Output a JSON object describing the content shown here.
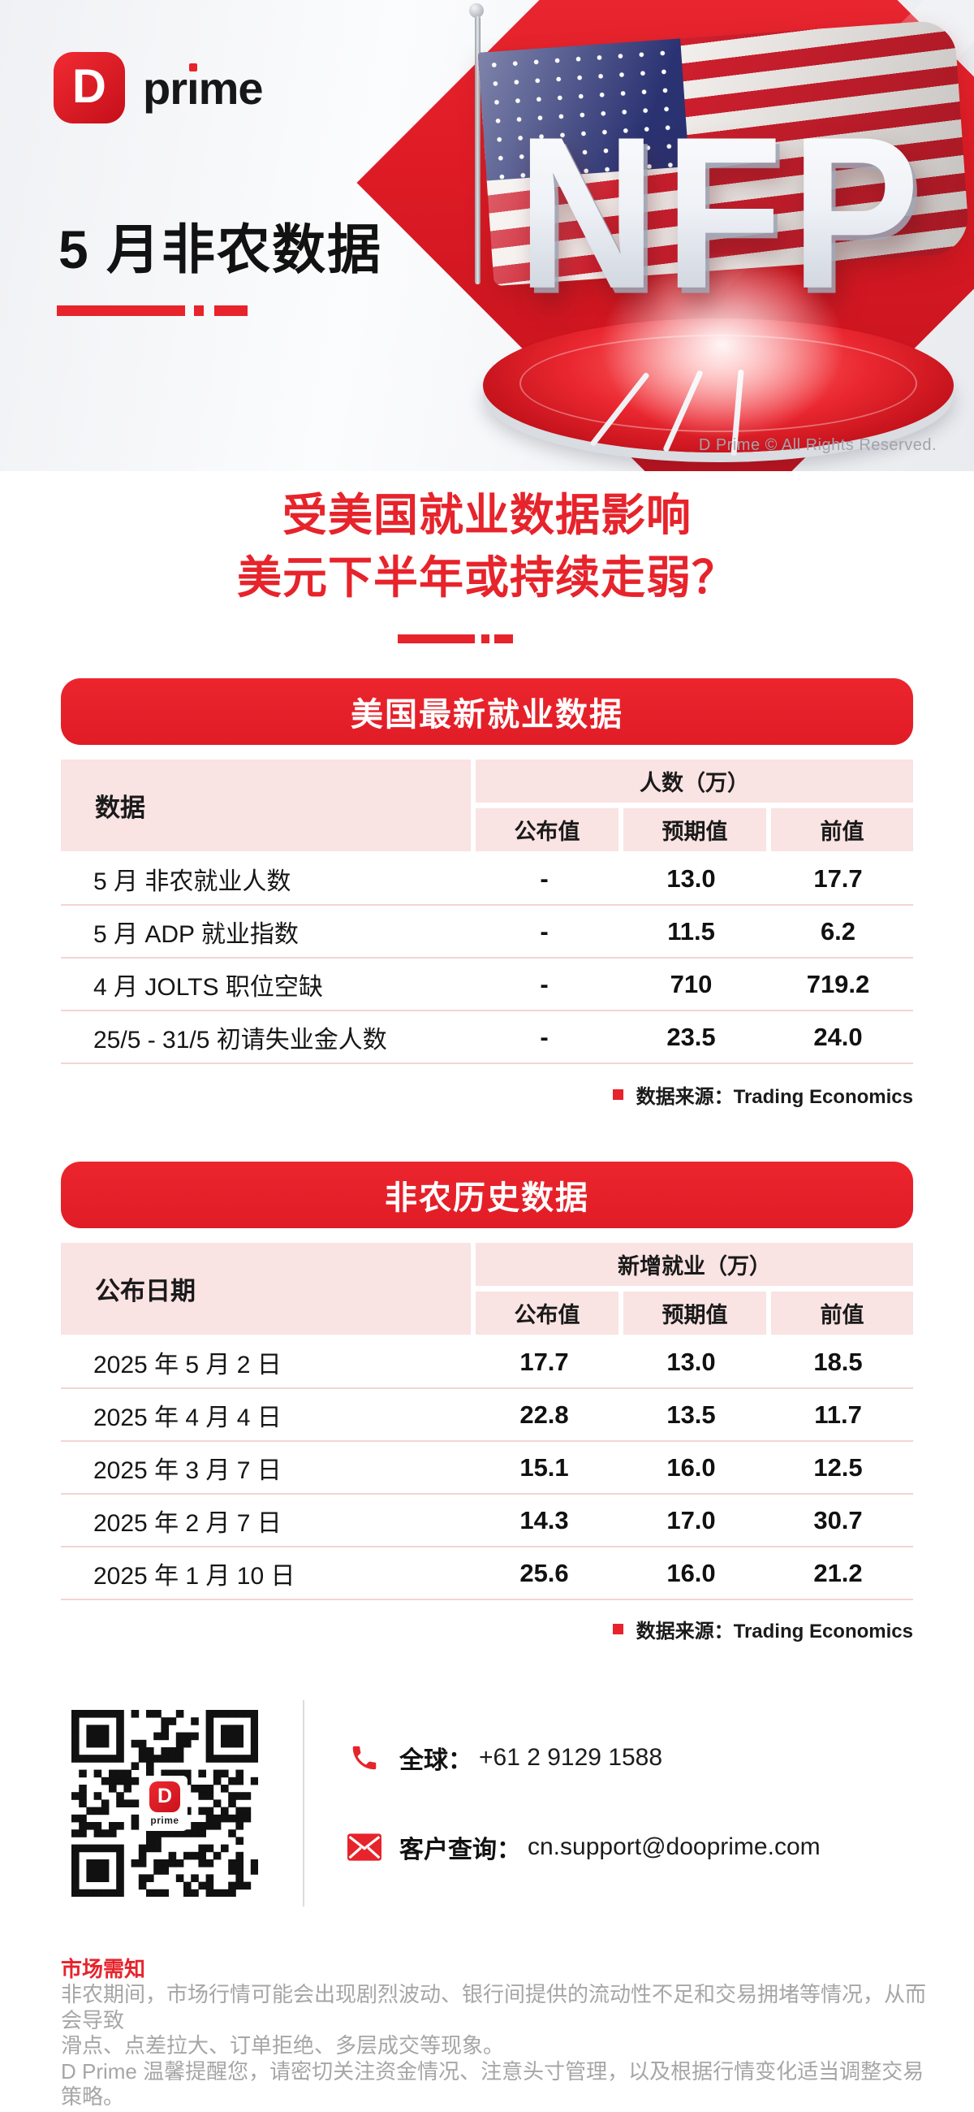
{
  "brand": {
    "mark_letter": "D",
    "wordmark": "prime"
  },
  "banner": {
    "title": "5 月非农数据",
    "nfp_text": "NFP",
    "copyright": "D Prime © All Rights Reserved."
  },
  "headline": {
    "line1": "受美国就业数据影响",
    "line2": "美元下半年或持续走弱？"
  },
  "tables": [
    {
      "section_title": "美国最新就业数据",
      "row_header": "数据",
      "group_header": "人数（万）",
      "columns": [
        "公布值",
        "预期值",
        "前值"
      ],
      "rows": [
        {
          "label": "5 月 非农就业人数",
          "values": [
            "-",
            "13.0",
            "17.7"
          ]
        },
        {
          "label": "5 月 ADP 就业指数",
          "values": [
            "-",
            "11.5",
            "6.2"
          ]
        },
        {
          "label": "4 月 JOLTS 职位空缺",
          "values": [
            "-",
            "710",
            "719.2"
          ]
        },
        {
          "label": "25/5 - 31/5 初请失业金人数",
          "values": [
            "-",
            "23.5",
            "24.0"
          ]
        }
      ],
      "source": "数据来源：Trading Economics"
    },
    {
      "section_title": "非农历史数据",
      "row_header": "公布日期",
      "group_header": "新增就业（万）",
      "columns": [
        "公布值",
        "预期值",
        "前值"
      ],
      "rows": [
        {
          "label": "2025 年 5 月 2 日",
          "values": [
            "17.7",
            "13.0",
            "18.5"
          ]
        },
        {
          "label": "2025 年 4 月 4 日",
          "values": [
            "22.8",
            "13.5",
            "11.7"
          ]
        },
        {
          "label": "2025 年 3 月 7 日",
          "values": [
            "15.1",
            "16.0",
            "12.5"
          ]
        },
        {
          "label": "2025 年 2 月 7 日",
          "values": [
            "14.3",
            "17.0",
            "30.7"
          ]
        },
        {
          "label": "2025 年 1 月 10 日",
          "values": [
            "25.6",
            "16.0",
            "21.2"
          ]
        }
      ],
      "source": "数据来源：Trading Economics"
    }
  ],
  "contact": {
    "phone_icon": "phone-icon",
    "phone_label": "全球：",
    "phone_number": "+61 2 9129 1588",
    "email_icon": "envelope-icon",
    "email_label": "客户查询：",
    "email": "cn.support@dooprime.com",
    "qr_icon": "qr-code"
  },
  "footer": {
    "notice_title": "市场需知",
    "line1": "非农期间，市场行情可能会出现剧烈波动、银行间提供的流动性不足和交易拥堵等情况，从而会导致",
    "line2": "滑点、点差拉大、订单拒绝、多层成交等现象。",
    "line3": "D Prime 温馨提醒您，请密切关注资金情况、注意头寸管理，以及根据行情变化适当调整交易策略。"
  },
  "colors": {
    "accent_red": "#e7232b",
    "header_pink": "#fae3e3",
    "row_line": "#f6d3d3",
    "text_dark": "#1a1a1a",
    "muted_gray": "#a6a6a6"
  }
}
